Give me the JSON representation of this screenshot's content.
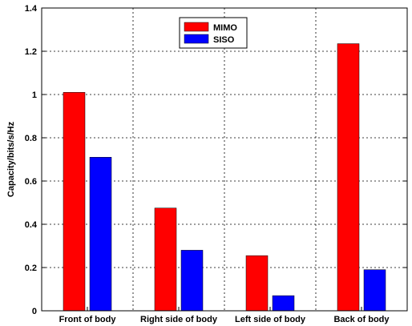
{
  "chart_data": {
    "type": "bar",
    "title": "",
    "xlabel": "",
    "ylabel": "Capacity/bits/s/Hz",
    "ylim": [
      0,
      1.4
    ],
    "yticks": [
      0,
      0.2,
      0.4,
      0.6,
      0.8,
      1,
      1.2,
      1.4
    ],
    "grid": true,
    "legend_position": "top-center",
    "categories": [
      "Front of body",
      "Right side of body",
      "Left side of body",
      "Back of body"
    ],
    "series": [
      {
        "name": "MIMO",
        "color": "#ff0000",
        "values": [
          1.01,
          0.475,
          0.255,
          1.235
        ]
      },
      {
        "name": "SISO",
        "color": "#0000ff",
        "values": [
          0.71,
          0.28,
          0.07,
          0.19
        ]
      }
    ]
  }
}
